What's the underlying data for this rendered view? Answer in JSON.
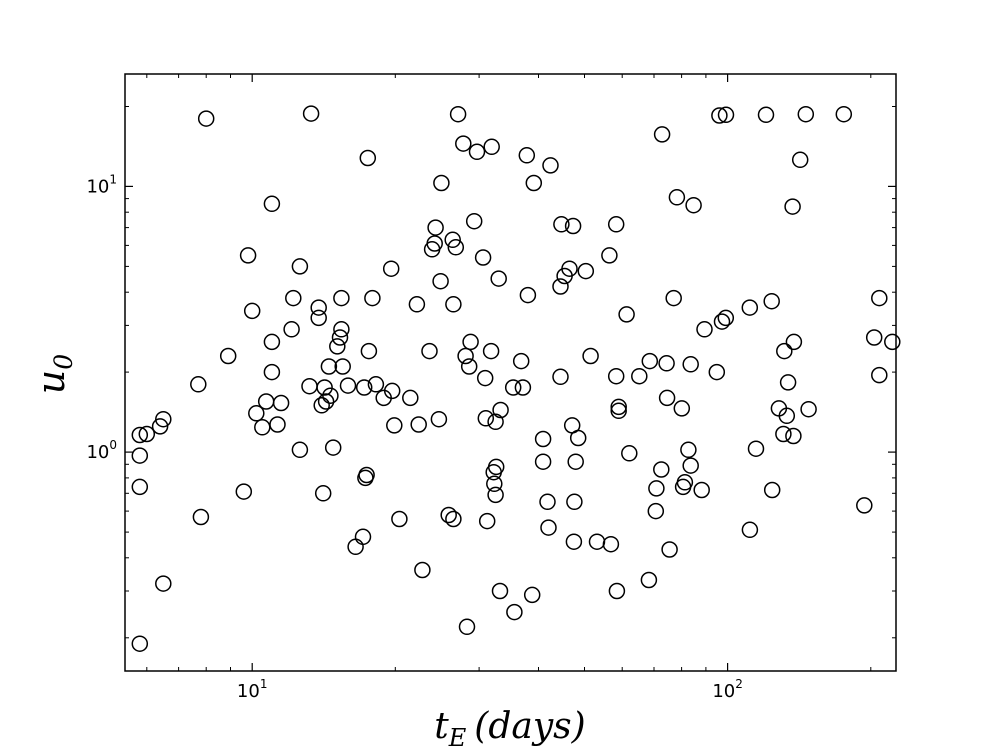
{
  "chart_data": {
    "type": "scatter",
    "title": "",
    "xlabel": "t_E (days)",
    "ylabel": "u_0",
    "xscale": "log",
    "yscale": "log",
    "xlim": [
      5.4,
      226
    ],
    "ylim": [
      0.15,
      26.5
    ],
    "grid": false,
    "marker": "open-circle",
    "marker_color": "#000000",
    "x_ticks": [
      {
        "value": 10,
        "base": "10",
        "exp": "1"
      },
      {
        "value": 100,
        "base": "10",
        "exp": "2"
      }
    ],
    "y_ticks": [
      {
        "value": 1,
        "base": "10",
        "exp": "0"
      },
      {
        "value": 10,
        "base": "10",
        "exp": "1"
      }
    ],
    "points": [
      [
        5.8,
        1.16
      ],
      [
        5.8,
        0.97
      ],
      [
        5.8,
        0.74
      ],
      [
        5.8,
        0.19
      ],
      [
        6.0,
        1.17
      ],
      [
        6.4,
        1.25
      ],
      [
        6.5,
        1.33
      ],
      [
        6.5,
        0.32
      ],
      [
        7.7,
        1.8
      ],
      [
        7.8,
        0.57
      ],
      [
        8.0,
        18.0
      ],
      [
        8.9,
        2.3
      ],
      [
        9.6,
        0.71
      ],
      [
        9.8,
        5.5
      ],
      [
        10.0,
        3.4
      ],
      [
        10.2,
        1.4
      ],
      [
        10.5,
        1.24
      ],
      [
        10.7,
        1.55
      ],
      [
        11.0,
        8.6
      ],
      [
        11.0,
        2.0
      ],
      [
        11.0,
        2.6
      ],
      [
        11.3,
        1.27
      ],
      [
        11.5,
        1.53
      ],
      [
        12.1,
        2.9
      ],
      [
        12.2,
        3.8
      ],
      [
        12.6,
        1.02
      ],
      [
        12.6,
        5.0
      ],
      [
        13.2,
        1.77
      ],
      [
        13.3,
        18.8
      ],
      [
        13.8,
        3.2
      ],
      [
        13.8,
        3.5
      ],
      [
        14.1,
        0.7
      ],
      [
        14.0,
        1.5
      ],
      [
        14.2,
        1.75
      ],
      [
        14.3,
        1.55
      ],
      [
        14.5,
        2.1
      ],
      [
        14.6,
        1.63
      ],
      [
        14.8,
        1.04
      ],
      [
        15.1,
        2.5
      ],
      [
        15.3,
        2.7
      ],
      [
        15.4,
        2.9
      ],
      [
        15.4,
        3.8
      ],
      [
        15.5,
        2.1
      ],
      [
        15.9,
        1.78
      ],
      [
        16.5,
        0.44
      ],
      [
        17.1,
        0.48
      ],
      [
        17.2,
        1.75
      ],
      [
        17.3,
        0.8
      ],
      [
        17.4,
        0.82
      ],
      [
        17.5,
        12.8
      ],
      [
        17.6,
        2.4
      ],
      [
        17.9,
        3.8
      ],
      [
        18.2,
        1.8
      ],
      [
        18.9,
        1.6
      ],
      [
        19.6,
        4.9
      ],
      [
        19.7,
        1.7
      ],
      [
        19.9,
        1.26
      ],
      [
        20.4,
        0.56
      ],
      [
        21.5,
        1.6
      ],
      [
        22.2,
        3.6
      ],
      [
        22.4,
        1.27
      ],
      [
        22.8,
        0.36
      ],
      [
        23.6,
        2.4
      ],
      [
        23.9,
        5.8
      ],
      [
        24.2,
        6.1
      ],
      [
        24.3,
        7.0
      ],
      [
        24.7,
        1.33
      ],
      [
        24.9,
        4.4
      ],
      [
        25.0,
        10.3
      ],
      [
        25.9,
        0.58
      ],
      [
        26.4,
        6.3
      ],
      [
        26.5,
        3.6
      ],
      [
        26.5,
        0.56
      ],
      [
        26.8,
        5.9
      ],
      [
        27.1,
        18.7
      ],
      [
        27.8,
        14.5
      ],
      [
        28.1,
        2.3
      ],
      [
        28.3,
        0.22
      ],
      [
        28.6,
        2.1
      ],
      [
        28.8,
        2.6
      ],
      [
        29.3,
        7.4
      ],
      [
        29.7,
        13.5
      ],
      [
        30.6,
        5.4
      ],
      [
        30.9,
        1.9
      ],
      [
        31.0,
        1.34
      ],
      [
        31.2,
        0.55
      ],
      [
        31.9,
        14.1
      ],
      [
        31.8,
        2.4
      ],
      [
        32.2,
        0.84
      ],
      [
        32.3,
        0.76
      ],
      [
        32.5,
        1.3
      ],
      [
        32.5,
        0.69
      ],
      [
        32.6,
        0.88
      ],
      [
        33.0,
        4.5
      ],
      [
        33.2,
        0.3
      ],
      [
        33.3,
        1.44
      ],
      [
        35.4,
        1.75
      ],
      [
        35.6,
        0.25
      ],
      [
        36.8,
        2.2
      ],
      [
        37.1,
        1.75
      ],
      [
        37.8,
        13.1
      ],
      [
        38.0,
        3.9
      ],
      [
        38.8,
        0.29
      ],
      [
        39.1,
        10.3
      ],
      [
        40.9,
        1.12
      ],
      [
        40.9,
        0.92
      ],
      [
        41.8,
        0.65
      ],
      [
        42.0,
        0.52
      ],
      [
        42.4,
        12.0
      ],
      [
        44.5,
        4.2
      ],
      [
        44.5,
        1.92
      ],
      [
        44.7,
        7.2
      ],
      [
        45.4,
        4.6
      ],
      [
        46.5,
        4.9
      ],
      [
        47.1,
        1.26
      ],
      [
        47.3,
        7.1
      ],
      [
        47.5,
        0.46
      ],
      [
        47.6,
        0.65
      ],
      [
        47.9,
        0.92
      ],
      [
        48.5,
        1.13
      ],
      [
        50.3,
        4.8
      ],
      [
        51.5,
        2.3
      ],
      [
        53.1,
        0.46
      ],
      [
        56.4,
        5.5
      ],
      [
        56.8,
        0.45
      ],
      [
        58.3,
        7.2
      ],
      [
        58.3,
        1.93
      ],
      [
        58.5,
        0.3
      ],
      [
        59.0,
        1.43
      ],
      [
        59.0,
        1.48
      ],
      [
        61.3,
        3.3
      ],
      [
        62.1,
        0.99
      ],
      [
        65.2,
        1.93
      ],
      [
        68.3,
        0.33
      ],
      [
        68.6,
        2.2
      ],
      [
        70.6,
        0.6
      ],
      [
        70.8,
        0.73
      ],
      [
        72.5,
        0.86
      ],
      [
        72.8,
        15.7
      ],
      [
        74.4,
        2.16
      ],
      [
        74.6,
        1.6
      ],
      [
        75.5,
        0.43
      ],
      [
        77.0,
        3.8
      ],
      [
        78.2,
        9.1
      ],
      [
        80.1,
        1.46
      ],
      [
        80.6,
        0.74
      ],
      [
        81.3,
        0.77
      ],
      [
        82.7,
        1.02
      ],
      [
        83.6,
        0.89
      ],
      [
        83.6,
        2.14
      ],
      [
        84.8,
        8.5
      ],
      [
        88.2,
        0.72
      ],
      [
        89.4,
        2.9
      ],
      [
        94.9,
        2.0
      ],
      [
        96.1,
        18.5
      ],
      [
        97.3,
        3.1
      ],
      [
        99.1,
        3.2
      ],
      [
        99.2,
        18.6
      ],
      [
        111.3,
        3.5
      ],
      [
        111.4,
        0.51
      ],
      [
        114.7,
        1.03
      ],
      [
        120.4,
        18.6
      ],
      [
        123.8,
        3.7
      ],
      [
        124.1,
        0.72
      ],
      [
        128.2,
        1.46
      ],
      [
        131.0,
        1.17
      ],
      [
        131.6,
        2.4
      ],
      [
        133.2,
        1.37
      ],
      [
        134.0,
        1.83
      ],
      [
        137.0,
        8.4
      ],
      [
        137.5,
        1.15
      ],
      [
        137.8,
        2.6
      ],
      [
        142.1,
        12.6
      ],
      [
        146.0,
        18.7
      ],
      [
        148.0,
        1.45
      ],
      [
        175.5,
        18.7
      ],
      [
        193.8,
        0.63
      ],
      [
        203.4,
        2.7
      ],
      [
        208.4,
        1.95
      ],
      [
        208.4,
        3.8
      ],
      [
        222.0,
        2.6
      ]
    ]
  }
}
